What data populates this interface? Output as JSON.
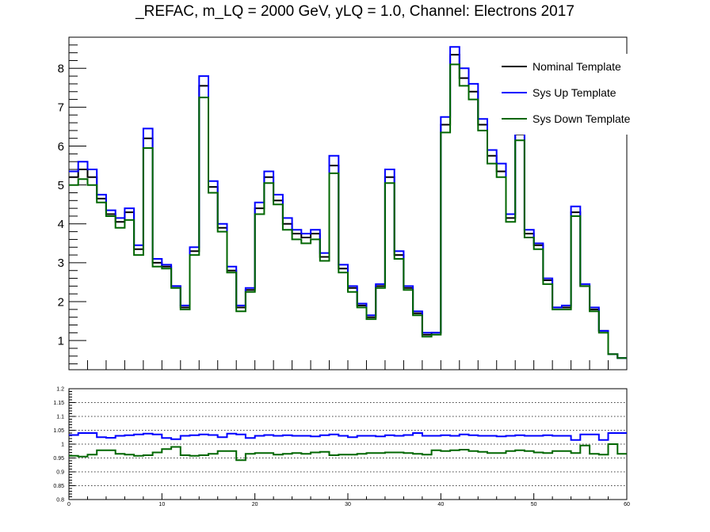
{
  "title": "_REFAC, m_LQ = 2000 GeV, yLQ = 1.0, Channel: Electrons 2017",
  "chart_data": [
    {
      "type": "line",
      "drawstyle": "steps",
      "title": "_REFAC, m_LQ = 2000 GeV, yLQ = 1.0, Channel: Electrons 2017",
      "xlabel": "",
      "ylabel": "",
      "xlim": [
        0,
        60
      ],
      "ylim": [
        0.25,
        8.8
      ],
      "y_ticks": [
        "1",
        "2",
        "3",
        "4",
        "5",
        "6",
        "7",
        "8"
      ],
      "legend_position": "top-right",
      "legend": [
        "Nominal Template",
        "Sys Up Template",
        "Sys Down Template"
      ],
      "colors": {
        "nominal": "#000000",
        "up": "#0000ff",
        "down": "#006600"
      },
      "bin_edges": [
        0,
        1,
        2,
        3,
        4,
        5,
        6,
        7,
        8,
        9,
        10,
        11,
        12,
        13,
        14,
        15,
        16,
        17,
        18,
        19,
        20,
        21,
        22,
        23,
        24,
        25,
        26,
        27,
        28,
        29,
        30,
        31,
        32,
        33,
        34,
        35,
        36,
        37,
        38,
        39,
        40,
        41,
        42,
        43,
        44,
        45,
        46,
        47,
        48,
        49,
        50,
        51,
        52,
        53,
        54,
        55,
        56,
        57,
        58,
        59,
        60
      ],
      "series": [
        {
          "name": "Nominal Template",
          "values": [
            5.2,
            5.4,
            5.2,
            4.65,
            4.25,
            4.05,
            4.3,
            3.35,
            6.2,
            3.0,
            2.9,
            2.4,
            1.85,
            3.3,
            7.55,
            4.95,
            3.9,
            2.8,
            1.85,
            2.3,
            4.4,
            5.2,
            4.6,
            4.0,
            3.75,
            3.65,
            3.75,
            3.15,
            5.5,
            2.85,
            2.35,
            1.9,
            1.6,
            2.4,
            5.2,
            3.2,
            2.35,
            1.7,
            1.15,
            1.2,
            6.55,
            8.35,
            7.75,
            7.4,
            6.55,
            5.75,
            5.35,
            4.15,
            6.3,
            3.75,
            3.45,
            2.55,
            1.85,
            1.85,
            4.3,
            2.4,
            1.8,
            1.25,
            0.65,
            0.55
          ]
        },
        {
          "name": "Sys Up Template",
          "values": [
            5.35,
            5.6,
            5.4,
            4.75,
            4.35,
            4.15,
            4.4,
            3.45,
            6.45,
            3.1,
            2.95,
            2.4,
            1.9,
            3.4,
            7.8,
            5.1,
            4.0,
            2.9,
            1.9,
            2.35,
            4.55,
            5.35,
            4.75,
            4.15,
            3.85,
            3.75,
            3.85,
            3.25,
            5.75,
            2.95,
            2.4,
            1.95,
            1.65,
            2.45,
            5.4,
            3.3,
            2.4,
            1.75,
            1.2,
            1.2,
            6.75,
            8.55,
            8.0,
            7.6,
            6.7,
            5.9,
            5.55,
            4.25,
            6.5,
            3.85,
            3.5,
            2.6,
            1.85,
            1.9,
            4.45,
            2.45,
            1.85,
            1.25,
            0.65,
            0.55
          ]
        },
        {
          "name": "Sys Down Template",
          "values": [
            5.0,
            5.15,
            5.0,
            4.55,
            4.2,
            3.9,
            4.1,
            3.2,
            5.95,
            2.9,
            2.85,
            2.35,
            1.8,
            3.2,
            7.25,
            4.8,
            3.8,
            2.75,
            1.75,
            2.25,
            4.25,
            5.05,
            4.5,
            3.85,
            3.6,
            3.5,
            3.6,
            3.05,
            5.3,
            2.75,
            2.25,
            1.85,
            1.55,
            2.35,
            5.05,
            3.1,
            2.3,
            1.65,
            1.1,
            1.15,
            6.35,
            8.1,
            7.55,
            7.2,
            6.4,
            5.55,
            5.2,
            4.05,
            6.15,
            3.65,
            3.35,
            2.45,
            1.8,
            1.8,
            4.2,
            2.4,
            1.75,
            1.2,
            0.65,
            0.55
          ]
        }
      ]
    },
    {
      "type": "line",
      "drawstyle": "steps",
      "title": "",
      "xlabel": "",
      "ylabel": "",
      "xlim": [
        0,
        60
      ],
      "ylim": [
        0.8,
        1.2
      ],
      "x_ticks": [
        "0",
        "10",
        "20",
        "30",
        "40",
        "50",
        "60"
      ],
      "y_ticks": [
        "0.8",
        "0.85",
        "0.9",
        "0.95",
        "1",
        "1.05",
        "1.1",
        "1.15",
        "1.2"
      ],
      "grid": "horizontal dotted",
      "series": [
        {
          "name": "Sys Up Template",
          "values": [
            1.033,
            1.04,
            1.04,
            1.025,
            1.023,
            1.03,
            1.032,
            1.035,
            1.038,
            1.035,
            1.022,
            1.018,
            1.03,
            1.032,
            1.035,
            1.033,
            1.025,
            1.038,
            1.035,
            1.022,
            1.03,
            1.033,
            1.03,
            1.032,
            1.03,
            1.03,
            1.028,
            1.032,
            1.035,
            1.03,
            1.025,
            1.03,
            1.03,
            1.028,
            1.032,
            1.03,
            1.033,
            1.04,
            1.03,
            1.03,
            1.032,
            1.03,
            1.035,
            1.032,
            1.03,
            1.03,
            1.028,
            1.03,
            1.032,
            1.03,
            1.03,
            1.032,
            1.03,
            1.03,
            1.015,
            1.035,
            1.035,
            1.015,
            1.04,
            1.04
          ]
        },
        {
          "name": "Sys Down Template",
          "values": [
            0.958,
            0.955,
            0.962,
            0.978,
            0.978,
            0.965,
            0.962,
            0.958,
            0.96,
            0.97,
            0.982,
            0.99,
            0.96,
            0.958,
            0.96,
            0.965,
            0.975,
            0.975,
            0.942,
            0.965,
            0.968,
            0.968,
            0.962,
            0.965,
            0.968,
            0.965,
            0.97,
            0.972,
            0.96,
            0.962,
            0.962,
            0.965,
            0.968,
            0.968,
            0.97,
            0.97,
            0.968,
            0.965,
            0.962,
            0.978,
            0.975,
            0.978,
            0.98,
            0.975,
            0.972,
            0.968,
            0.968,
            0.975,
            0.978,
            0.975,
            0.97,
            0.968,
            0.975,
            0.975,
            0.968,
            0.995,
            0.965,
            0.962,
            1.0,
            0.965
          ]
        }
      ]
    }
  ]
}
